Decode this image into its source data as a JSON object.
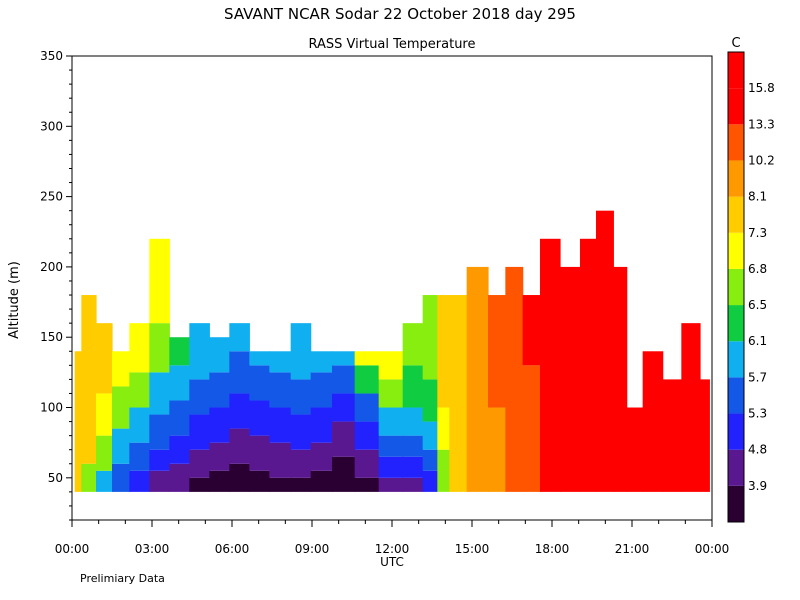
{
  "chart_data": {
    "type": "heatmap",
    "title": "SAVANT  NCAR Sodar  22 October 2018  day 295",
    "subtitle": "RASS Virtual Temperature",
    "xlabel": "UTC",
    "ylabel": "Altitude (m)",
    "footnote": "Prelimiary Data",
    "colorbar_unit": "C",
    "xlim": [
      0,
      24
    ],
    "ylim": [
      20,
      350
    ],
    "x_ticks": [
      {
        "v": 0,
        "label": "00:00"
      },
      {
        "v": 3,
        "label": "03:00"
      },
      {
        "v": 6,
        "label": "06:00"
      },
      {
        "v": 9,
        "label": "09:00"
      },
      {
        "v": 12,
        "label": "12:00"
      },
      {
        "v": 15,
        "label": "15:00"
      },
      {
        "v": 18,
        "label": "18:00"
      },
      {
        "v": 21,
        "label": "21:00"
      },
      {
        "v": 24,
        "label": "00:00"
      }
    ],
    "y_ticks": [
      {
        "v": 50,
        "label": "50"
      },
      {
        "v": 100,
        "label": "100"
      },
      {
        "v": 150,
        "label": "150"
      },
      {
        "v": 200,
        "label": "200"
      },
      {
        "v": 250,
        "label": "250"
      },
      {
        "v": 300,
        "label": "300"
      },
      {
        "v": 350,
        "label": "350"
      }
    ],
    "color_levels": [
      {
        "label": "3.9",
        "color": "#2a0033"
      },
      {
        "label": "4.8",
        "color": "#5a1890"
      },
      {
        "label": "5.3",
        "color": "#2222ff"
      },
      {
        "label": "5.7",
        "color": "#1458e8"
      },
      {
        "label": "6.1",
        "color": "#10b0f0"
      },
      {
        "label": "6.5",
        "color": "#10cc40"
      },
      {
        "label": "6.8",
        "color": "#88ee10"
      },
      {
        "label": "7.3",
        "color": "#ffff00"
      },
      {
        "label": "8.1",
        "color": "#ffcc00"
      },
      {
        "label": "10.2",
        "color": "#ff9900"
      },
      {
        "label": "13.3",
        "color": "#ff5500"
      },
      {
        "label": "15.8",
        "color": "#ff0000"
      }
    ],
    "top_color": "#ff0000",
    "data_range_altitude": [
      40,
      240
    ],
    "columns": [
      {
        "t": 0.1,
        "top": 140,
        "layers": [
          [
            40,
            8.1
          ]
        ]
      },
      {
        "t": 0.6,
        "top": 180,
        "layers": [
          [
            40,
            6.8
          ],
          [
            60,
            8.1
          ]
        ]
      },
      {
        "t": 1.2,
        "top": 160,
        "layers": [
          [
            40,
            6.1
          ],
          [
            55,
            6.8
          ],
          [
            80,
            7.3
          ],
          [
            110,
            8.1
          ]
        ]
      },
      {
        "t": 1.8,
        "top": 140,
        "layers": [
          [
            40,
            5.7
          ],
          [
            60,
            6.1
          ],
          [
            85,
            6.8
          ],
          [
            115,
            7.3
          ]
        ]
      },
      {
        "t": 2.5,
        "top": 160,
        "layers": [
          [
            40,
            5.3
          ],
          [
            55,
            5.7
          ],
          [
            75,
            6.1
          ],
          [
            100,
            6.8
          ],
          [
            125,
            7.3
          ]
        ]
      },
      {
        "t": 3.3,
        "top": 220,
        "layers": [
          [
            40,
            4.8
          ],
          [
            55,
            5.3
          ],
          [
            70,
            5.7
          ],
          [
            95,
            6.1
          ],
          [
            125,
            6.8
          ],
          [
            160,
            7.3
          ]
        ]
      },
      {
        "t": 4.0,
        "top": 150,
        "layers": [
          [
            40,
            4.8
          ],
          [
            60,
            5.3
          ],
          [
            80,
            5.7
          ],
          [
            105,
            6.1
          ],
          [
            130,
            6.5
          ]
        ]
      },
      {
        "t": 4.8,
        "top": 160,
        "layers": [
          [
            40,
            3.9
          ],
          [
            50,
            4.8
          ],
          [
            70,
            5.3
          ],
          [
            95,
            5.7
          ],
          [
            120,
            6.1
          ]
        ]
      },
      {
        "t": 5.5,
        "top": 150,
        "layers": [
          [
            40,
            3.9
          ],
          [
            55,
            4.8
          ],
          [
            75,
            5.3
          ],
          [
            100,
            5.7
          ],
          [
            125,
            6.1
          ]
        ]
      },
      {
        "t": 6.3,
        "top": 160,
        "layers": [
          [
            40,
            3.9
          ],
          [
            60,
            4.8
          ],
          [
            85,
            5.3
          ],
          [
            110,
            5.7
          ],
          [
            140,
            6.1
          ]
        ]
      },
      {
        "t": 7.0,
        "top": 140,
        "layers": [
          [
            40,
            3.9
          ],
          [
            55,
            4.8
          ],
          [
            80,
            5.3
          ],
          [
            105,
            5.7
          ],
          [
            130,
            6.1
          ]
        ]
      },
      {
        "t": 7.8,
        "top": 140,
        "layers": [
          [
            40,
            3.9
          ],
          [
            50,
            4.8
          ],
          [
            75,
            5.3
          ],
          [
            100,
            5.7
          ],
          [
            125,
            6.1
          ]
        ]
      },
      {
        "t": 8.6,
        "top": 160,
        "layers": [
          [
            40,
            3.9
          ],
          [
            50,
            4.8
          ],
          [
            70,
            5.3
          ],
          [
            95,
            5.7
          ],
          [
            120,
            6.1
          ]
        ]
      },
      {
        "t": 9.3,
        "top": 140,
        "layers": [
          [
            40,
            3.9
          ],
          [
            55,
            4.8
          ],
          [
            75,
            5.3
          ],
          [
            100,
            5.7
          ],
          [
            125,
            6.1
          ]
        ]
      },
      {
        "t": 10.2,
        "top": 140,
        "layers": [
          [
            40,
            3.9
          ],
          [
            65,
            4.8
          ],
          [
            90,
            5.3
          ],
          [
            110,
            5.7
          ],
          [
            130,
            6.1
          ]
        ]
      },
      {
        "t": 11.0,
        "top": 140,
        "layers": [
          [
            40,
            3.9
          ],
          [
            50,
            4.8
          ],
          [
            70,
            5.3
          ],
          [
            90,
            5.7
          ],
          [
            110,
            6.5
          ],
          [
            130,
            7.3
          ]
        ]
      },
      {
        "t": 12.0,
        "top": 140,
        "layers": [
          [
            40,
            4.8
          ],
          [
            50,
            5.3
          ],
          [
            65,
            5.7
          ],
          [
            80,
            6.1
          ],
          [
            100,
            6.8
          ],
          [
            120,
            7.3
          ]
        ]
      },
      {
        "t": 12.8,
        "top": 160,
        "layers": [
          [
            40,
            4.8
          ],
          [
            50,
            5.3
          ],
          [
            65,
            5.7
          ],
          [
            80,
            6.1
          ],
          [
            100,
            6.5
          ],
          [
            130,
            6.8
          ]
        ]
      },
      {
        "t": 13.5,
        "top": 180,
        "layers": [
          [
            40,
            5.3
          ],
          [
            55,
            5.7
          ],
          [
            70,
            6.1
          ],
          [
            90,
            6.5
          ],
          [
            120,
            6.8
          ]
        ]
      },
      {
        "t": 13.9,
        "top": 180,
        "layers": [
          [
            40,
            6.8
          ],
          [
            70,
            7.3
          ],
          [
            100,
            8.1
          ]
        ]
      },
      {
        "t": 14.4,
        "top": 180,
        "layers": [
          [
            40,
            8.1
          ]
        ]
      },
      {
        "t": 15.2,
        "top": 200,
        "layers": [
          [
            40,
            10.2
          ]
        ]
      },
      {
        "t": 16.0,
        "top": 180,
        "layers": [
          [
            40,
            10.2
          ],
          [
            100,
            13.3
          ]
        ]
      },
      {
        "t": 16.5,
        "top": 200,
        "layers": [
          [
            40,
            13.3
          ]
        ]
      },
      {
        "t": 17.3,
        "top": 180,
        "layers": [
          [
            40,
            13.3
          ],
          [
            130,
            15.8
          ]
        ]
      },
      {
        "t": 17.8,
        "top": 220,
        "layers": [
          [
            40,
            15.8
          ]
        ]
      },
      {
        "t": 18.8,
        "top": 200,
        "layers": [
          [
            40,
            15.8
          ]
        ]
      },
      {
        "t": 19.3,
        "top": 220,
        "layers": [
          [
            40,
            15.8
          ]
        ]
      },
      {
        "t": 20.0,
        "top": 240,
        "layers": [
          [
            40,
            15.8
          ]
        ]
      },
      {
        "t": 20.6,
        "top": 200,
        "layers": [
          [
            40,
            15.8
          ]
        ]
      },
      {
        "t": 21.0,
        "top": 100,
        "layers": [
          [
            40,
            15.8
          ]
        ]
      },
      {
        "t": 21.8,
        "top": 140,
        "layers": [
          [
            40,
            15.8
          ]
        ]
      },
      {
        "t": 22.5,
        "top": 120,
        "layers": [
          [
            40,
            15.8
          ]
        ]
      },
      {
        "t": 23.2,
        "top": 160,
        "layers": [
          [
            40,
            15.8
          ]
        ]
      },
      {
        "t": 23.9,
        "top": 120,
        "layers": [
          [
            40,
            15.8
          ]
        ]
      }
    ]
  }
}
